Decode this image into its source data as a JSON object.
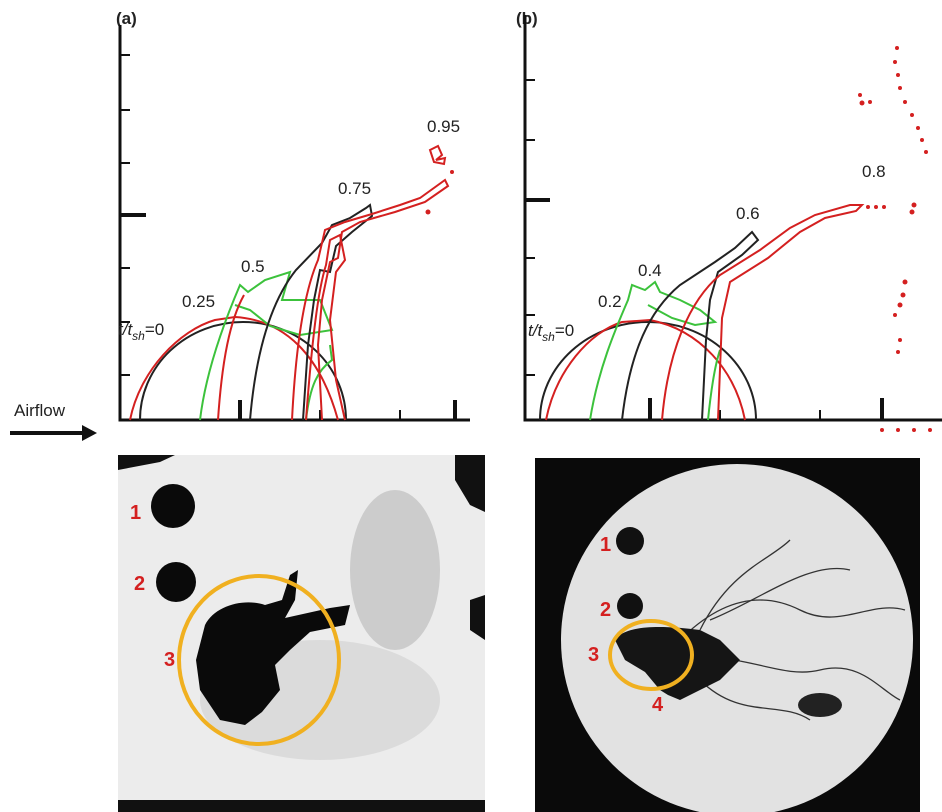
{
  "flow_label": "Airflow",
  "panels": [
    {
      "label": "(a)",
      "time_label": {
        "prefix": "t/t",
        "subscript": "sh",
        "suffix": "=0"
      },
      "contour_labels": [
        "0.25",
        "0.5",
        "0.75",
        "0.95"
      ],
      "photo_markers": [
        "1",
        "2",
        "3"
      ]
    },
    {
      "label": "(b)",
      "time_label": {
        "prefix": "t/t",
        "subscript": "sh",
        "suffix": "=0"
      },
      "contour_labels": [
        "0.2",
        "0.4",
        "0.6",
        "0.8"
      ],
      "photo_markers": [
        "1",
        "2",
        "3",
        "4"
      ]
    }
  ]
}
